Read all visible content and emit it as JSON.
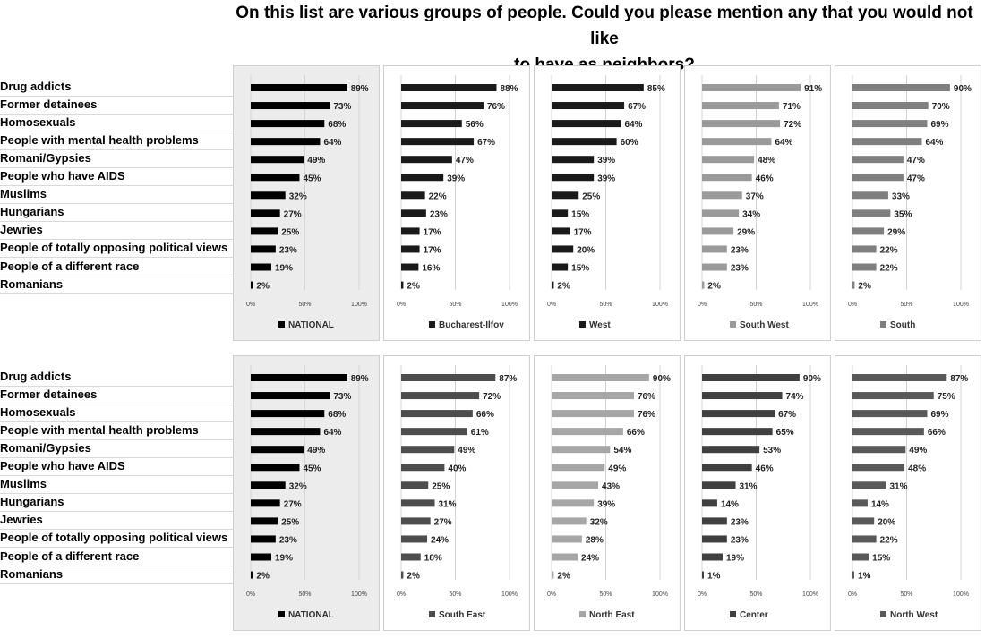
{
  "title": "On this list are various groups of people. Could you please mention any that you would not like to have as neighbors?",
  "title_line1": "On this list are various groups of people. Could you please mention any that you would not like",
  "title_line2": "to have as neighbors?",
  "chart_data": {
    "type": "bar",
    "orientation": "horizontal",
    "title": "On this list are various groups of people. Could you please mention any that you would not like to have as neighbors?",
    "categories": [
      "Drug addicts",
      "Former detainees",
      "Homosexuals",
      "People with mental health problems",
      "Romani/Gypsies",
      "People who have AIDS",
      "Muslims",
      "Hungarians",
      "Jewries",
      "People of totally opposing political views",
      "People of a different race",
      "Romanians"
    ],
    "xlim": [
      0,
      100
    ],
    "x_ticks": [
      "0%",
      "50%",
      "100%"
    ],
    "legend_placement": "bottom",
    "rows": [
      {
        "panels": [
          {
            "name": "NATIONAL",
            "color": "#000000",
            "values": [
              89,
              73,
              68,
              64,
              49,
              45,
              32,
              27,
              25,
              23,
              19,
              2
            ]
          },
          {
            "name": "Bucharest-Ilfov",
            "color": "#1a1a1a",
            "values": [
              88,
              76,
              56,
              67,
              47,
              39,
              22,
              23,
              17,
              17,
              16,
              2
            ]
          },
          {
            "name": "West",
            "color": "#1a1a1a",
            "values": [
              85,
              67,
              64,
              60,
              39,
              39,
              25,
              15,
              17,
              20,
              15,
              2
            ]
          },
          {
            "name": "South West",
            "color": "#9a9a9a",
            "values": [
              91,
              71,
              72,
              64,
              48,
              46,
              37,
              34,
              29,
              23,
              23,
              2
            ]
          },
          {
            "name": "South",
            "color": "#7f7f7f",
            "values": [
              90,
              70,
              69,
              64,
              47,
              47,
              33,
              35,
              29,
              22,
              22,
              2
            ]
          }
        ]
      },
      {
        "panels": [
          {
            "name": "NATIONAL",
            "color": "#000000",
            "values": [
              89,
              73,
              68,
              64,
              49,
              45,
              32,
              27,
              25,
              23,
              19,
              2
            ]
          },
          {
            "name": "South East",
            "color": "#4d4d4d",
            "values": [
              87,
              72,
              66,
              61,
              49,
              40,
              25,
              31,
              27,
              24,
              18,
              2
            ]
          },
          {
            "name": "North East",
            "color": "#a6a6a6",
            "values": [
              90,
              76,
              76,
              66,
              54,
              49,
              43,
              39,
              32,
              28,
              24,
              2
            ]
          },
          {
            "name": "Center",
            "color": "#404040",
            "values": [
              90,
              74,
              67,
              65,
              53,
              46,
              31,
              14,
              23,
              23,
              19,
              1
            ]
          },
          {
            "name": "North West",
            "color": "#595959",
            "values": [
              87,
              75,
              69,
              66,
              49,
              48,
              31,
              14,
              20,
              22,
              15,
              1
            ]
          }
        ]
      }
    ]
  }
}
